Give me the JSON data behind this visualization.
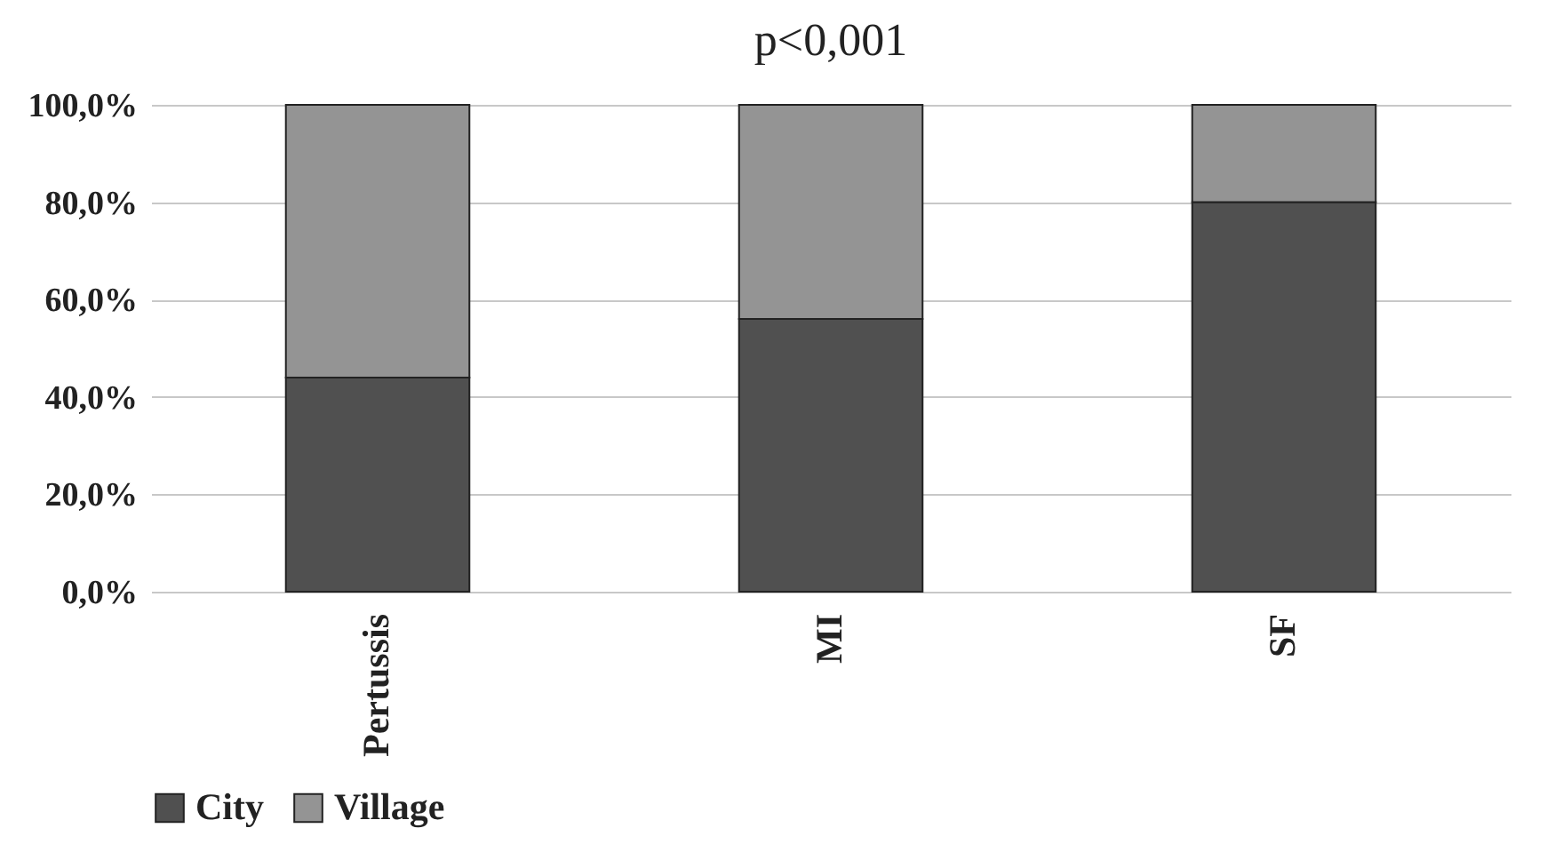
{
  "chart_data": {
    "type": "bar",
    "title": "p<0,001",
    "categories": [
      "Pertussis",
      "MI",
      "SF"
    ],
    "stacked": true,
    "series": [
      {
        "name": "City",
        "color": "#505050",
        "values": [
          44,
          56,
          80
        ]
      },
      {
        "name": "Village",
        "color": "#949494",
        "values": [
          56,
          44,
          20
        ]
      }
    ],
    "ylim": [
      0,
      100
    ],
    "yticks": [
      {
        "value": 0,
        "label": "0,0%"
      },
      {
        "value": 20,
        "label": "20,0%"
      },
      {
        "value": 40,
        "label": "40,0%"
      },
      {
        "value": 60,
        "label": "60,0%"
      },
      {
        "value": 80,
        "label": "80,0%"
      },
      {
        "value": 100,
        "label": "100,0%"
      }
    ],
    "grid": "y",
    "legend": "bottom"
  }
}
